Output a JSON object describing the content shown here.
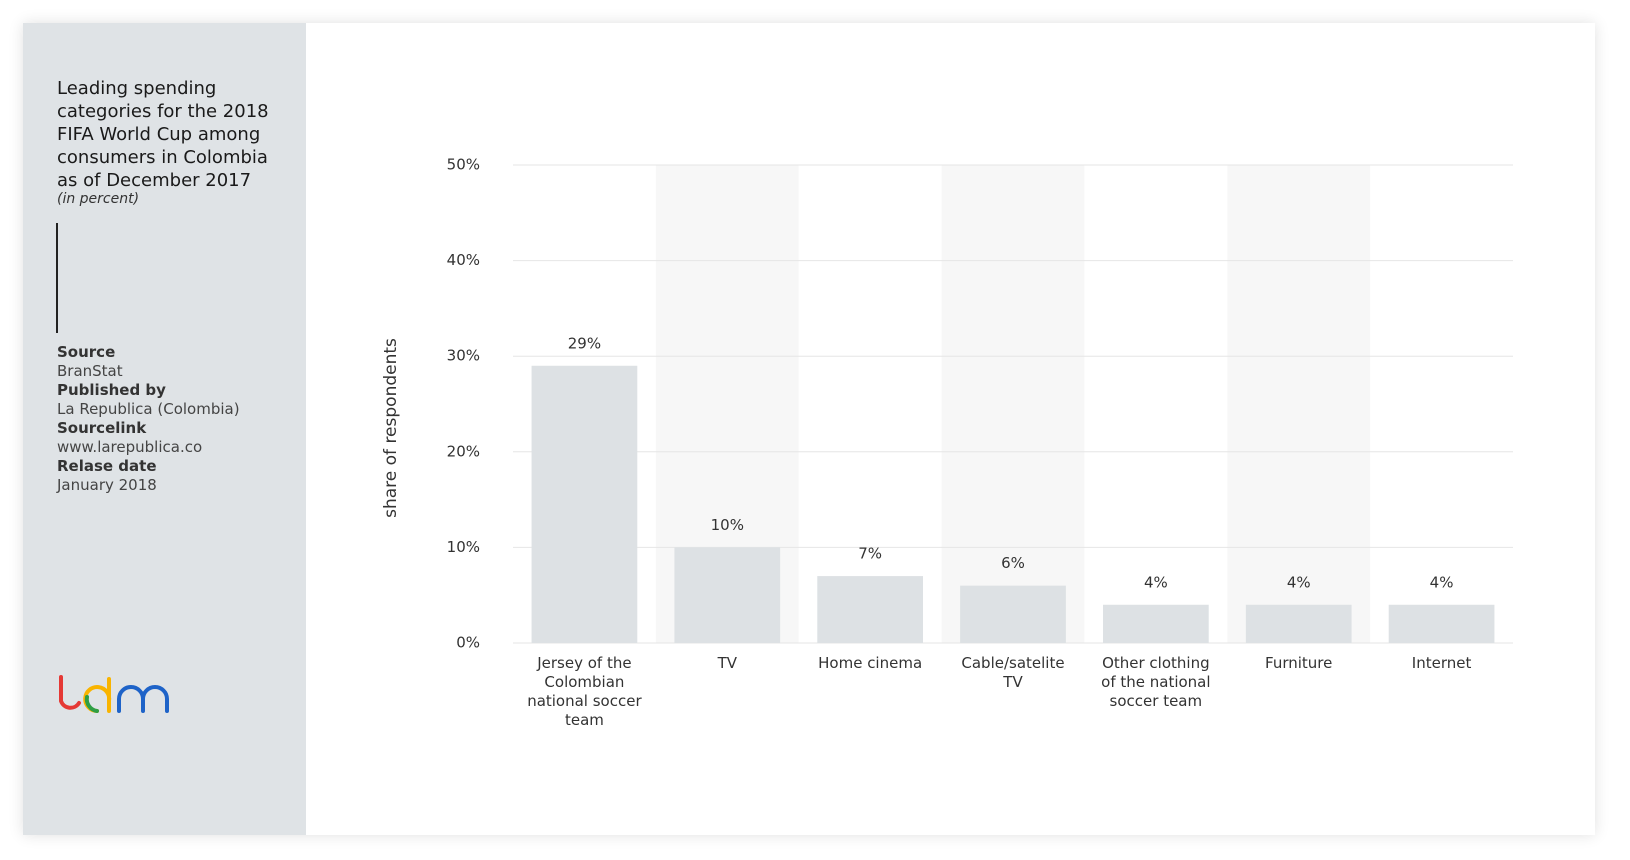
{
  "sidebar": {
    "title": "Leading spending categories for the 2018 FIFA World Cup among consumers in Colombia as of December 2017",
    "subtitle": "(in percent)",
    "source_label": "Source",
    "source": "BranStat",
    "published_label": "Published by",
    "published": "La Republica (Colombia)",
    "sourcelink_label": "Sourcelink",
    "sourcelink": "www.larepublica.co",
    "release_label": "Relase date",
    "release": "January 2018"
  },
  "chart_data": {
    "type": "bar",
    "y_label": "share of respondents",
    "categories": [
      "Jersey of the Colombian national soccer team",
      "TV",
      "Home cinema",
      "Cable/satelite TV",
      "Other clothing of the national soccer team",
      "Furniture",
      "Internet"
    ],
    "values": [
      29,
      10,
      7,
      6,
      4,
      4,
      4
    ],
    "value_labels": [
      "29%",
      "10%",
      "7%",
      "6%",
      "4%",
      "4%",
      "4%"
    ],
    "color": "#dde1e4",
    "ylim": [
      0,
      50
    ],
    "yticks": [
      {
        "value": 0,
        "label": "0%"
      },
      {
        "value": 10,
        "label": "10%"
      },
      {
        "value": 20,
        "label": "20%"
      },
      {
        "value": 30,
        "label": "30%"
      },
      {
        "value": 40,
        "label": "40%"
      },
      {
        "value": 50,
        "label": "50%"
      }
    ],
    "grid": true
  }
}
